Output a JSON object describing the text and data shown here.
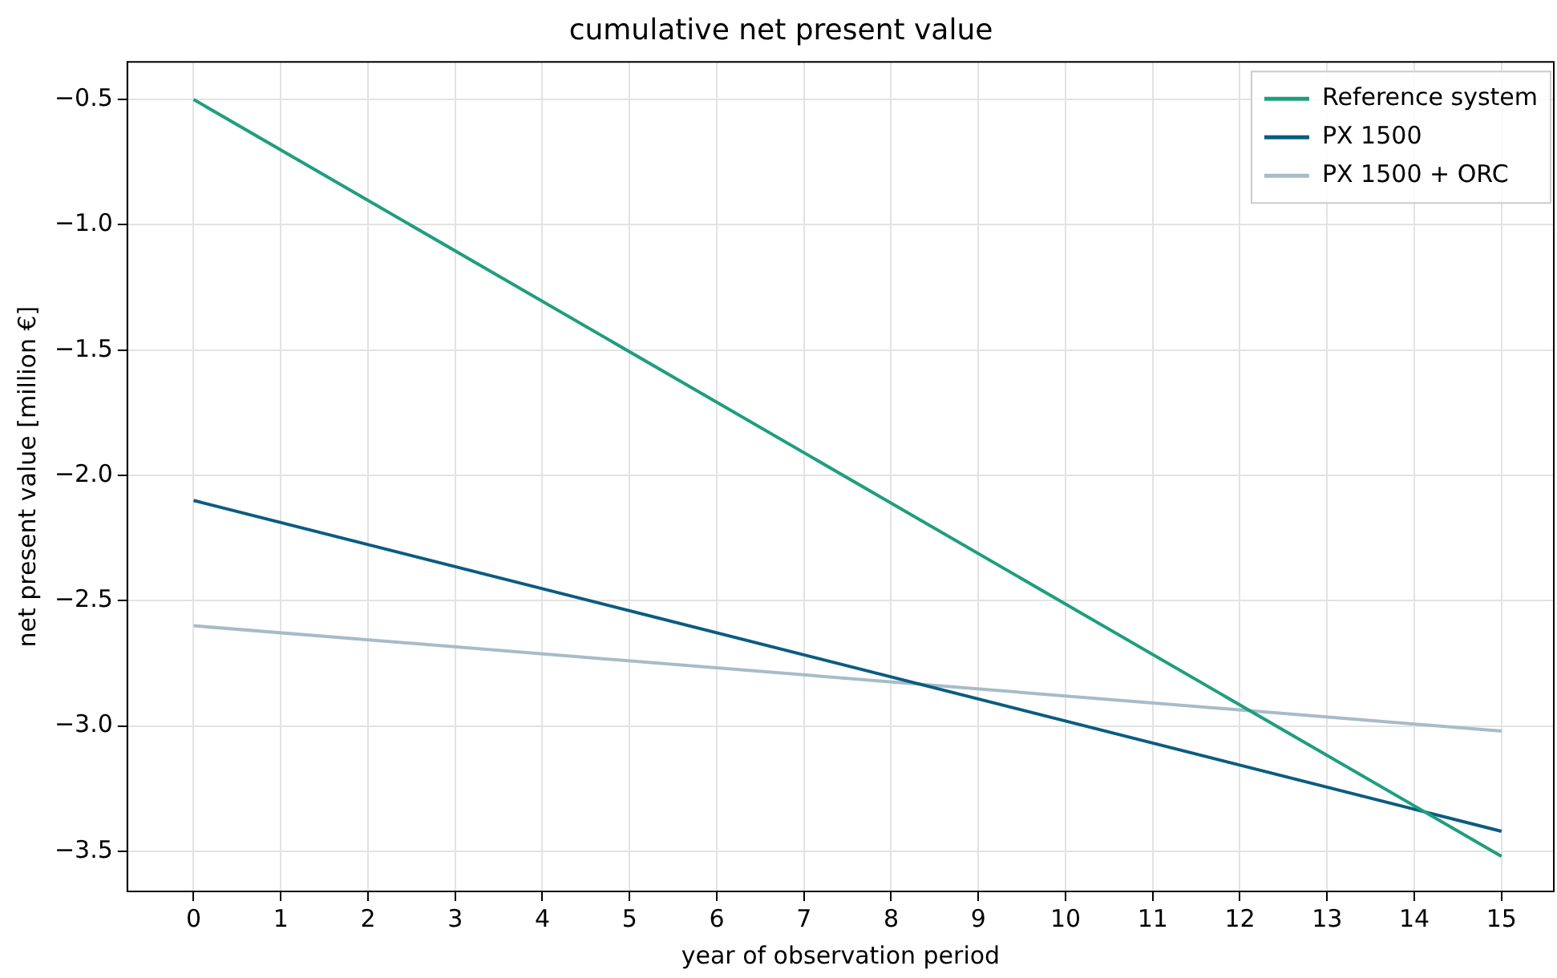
{
  "chart_data": {
    "type": "line",
    "title": "cumulative net present value",
    "xlabel": "year of observation period",
    "ylabel": "net present value [million €]",
    "x": [
      0,
      15
    ],
    "series": [
      {
        "name": "Reference system",
        "color": "#1f9e7e",
        "values": [
          -0.5,
          -3.52
        ]
      },
      {
        "name": "PX 1500",
        "color": "#0a5c80",
        "values": [
          -2.1,
          -3.42
        ]
      },
      {
        "name": "PX 1500 + ORC",
        "color": "#a6bcc8",
        "values": [
          -2.6,
          -3.02
        ]
      }
    ],
    "xlim": [
      -0.76,
      15.6
    ],
    "xticks": [
      0,
      1,
      2,
      3,
      4,
      5,
      6,
      7,
      8,
      9,
      10,
      11,
      12,
      13,
      14,
      15
    ],
    "ylim": [
      -3.66,
      -0.35
    ],
    "yticks": [
      {
        "value": -3.5,
        "label": "−3.5"
      },
      {
        "value": -3,
        "label": "−3.0"
      },
      {
        "value": -2.5,
        "label": "−2.5"
      },
      {
        "value": -2,
        "label": "−2.0"
      },
      {
        "value": -1.5,
        "label": "−1.5"
      },
      {
        "value": -1,
        "label": "−1.0"
      },
      {
        "value": -0.5,
        "label": "−0.5"
      }
    ],
    "grid": true,
    "legend": "top right",
    "marker": "none",
    "line_style": "solid"
  }
}
